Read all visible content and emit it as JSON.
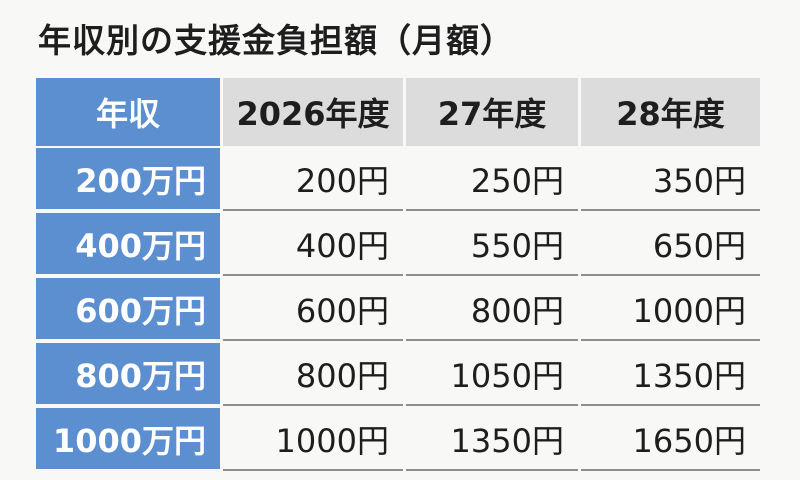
{
  "title": "年収別の支援金負担額（月額）",
  "table": {
    "header": {
      "income": "年収",
      "y2026": "2026年度",
      "y27": "27年度",
      "y28": "28年度"
    },
    "rows": [
      {
        "income": "200万円",
        "y2026": "200円",
        "y27": "250円",
        "y28": "350円"
      },
      {
        "income": "400万円",
        "y2026": "400円",
        "y27": "550円",
        "y28": "650円"
      },
      {
        "income": "600万円",
        "y2026": "600円",
        "y27": "800円",
        "y28": "1000円"
      },
      {
        "income": "800万円",
        "y2026": "800円",
        "y27": "1050円",
        "y28": "1350円"
      },
      {
        "income": "1000万円",
        "y2026": "1000円",
        "y27": "1350円",
        "y28": "1650円"
      }
    ]
  },
  "colors": {
    "income_column": "#5b8fd0",
    "header_background": "#dcdcdc",
    "row_divider": "#8e8e8e"
  }
}
